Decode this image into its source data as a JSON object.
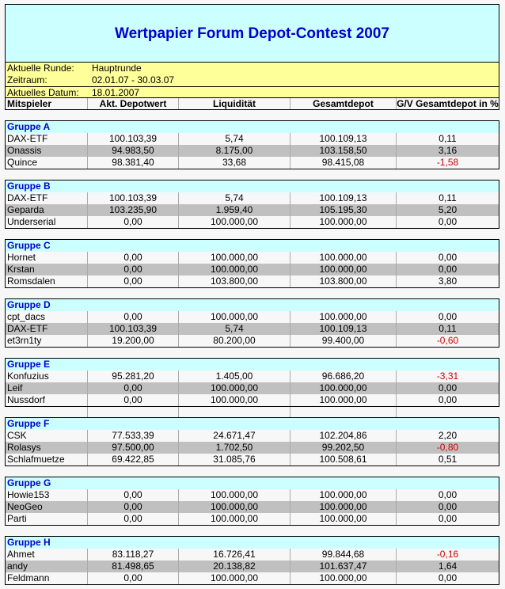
{
  "title": "Wertpapier Forum Depot-Contest 2007",
  "info": [
    {
      "label": "Aktuelle Runde:",
      "value": "Hauptrunde"
    },
    {
      "label": "Zeitraum:",
      "value": "02.01.07 - 30.03.07"
    },
    {
      "label": "Aktuelles Datum:",
      "value": "18.01.2007"
    }
  ],
  "columns": [
    "Mitspieler",
    "Akt. Depotwert",
    "Liquidität",
    "Gesamtdepot",
    "G/V Gesamtdepot in %"
  ],
  "colors": {
    "header_bg": "#ccffff",
    "info_bg": "#ffff99",
    "title": "#0000cc",
    "negative": "#cc0000",
    "alt_row": "#c0c0c0"
  },
  "groups": [
    {
      "name": "Gruppe A",
      "rows": [
        [
          "DAX-ETF",
          "100.103,39",
          "5,74",
          "100.109,13",
          "0,11"
        ],
        [
          "Onassis",
          "94.983,50",
          "8.175,00",
          "103.158,50",
          "3,16"
        ],
        [
          "Quince",
          "98.381,40",
          "33,68",
          "98.415,08",
          "-1,58"
        ]
      ]
    },
    {
      "name": "Gruppe B",
      "rows": [
        [
          "DAX-ETF",
          "100.103,39",
          "5,74",
          "100.109,13",
          "0,11"
        ],
        [
          "Geparda",
          "103.235,90",
          "1.959,40",
          "105.195,30",
          "5,20"
        ],
        [
          "Underserial",
          "0,00",
          "100.000,00",
          "100.000,00",
          "0,00"
        ]
      ]
    },
    {
      "name": "Gruppe C",
      "rows": [
        [
          "Hornet",
          "0,00",
          "100.000,00",
          "100.000,00",
          "0,00"
        ],
        [
          "Krstan",
          "0,00",
          "100.000,00",
          "100.000,00",
          "0,00"
        ],
        [
          "Romsdalen",
          "0,00",
          "103.800,00",
          "103.800,00",
          "3,80"
        ]
      ]
    },
    {
      "name": "Gruppe D",
      "rows": [
        [
          "cpt_dacs",
          "0,00",
          "100.000,00",
          "100.000,00",
          "0,00"
        ],
        [
          "DAX-ETF",
          "100.103,39",
          "5,74",
          "100.109,13",
          "0,11"
        ],
        [
          "et3rn1ty",
          "19.200,00",
          "80.200,00",
          "99.400,00",
          "-0,60"
        ]
      ]
    },
    {
      "name": "Gruppe E",
      "rows": [
        [
          "Konfuzius",
          "95.281,20",
          "1.405,00",
          "96.686,20",
          "-3,31"
        ],
        [
          "Leif",
          "0,00",
          "100.000,00",
          "100.000,00",
          "0,00"
        ],
        [
          "Nussdorf",
          "0,00",
          "100.000,00",
          "100.000,00",
          "0,00"
        ]
      ]
    },
    {
      "name": "Gruppe F",
      "rows": [
        [
          "CSK",
          "77.533,39",
          "24.671,47",
          "102.204,86",
          "2,20"
        ],
        [
          "Rolasys",
          "97.500,00",
          "1.702,50",
          "99.202,50",
          "-0,80"
        ],
        [
          "Schlafmuetze",
          "69.422,85",
          "31.085,76",
          "100.508,61",
          "0,51"
        ]
      ]
    },
    {
      "name": "Gruppe G",
      "rows": [
        [
          "Howie153",
          "0,00",
          "100.000,00",
          "100.000,00",
          "0,00"
        ],
        [
          "NeoGeo",
          "0,00",
          "100.000,00",
          "100.000,00",
          "0,00"
        ],
        [
          "Parti",
          "0,00",
          "100.000,00",
          "100.000,00",
          "0,00"
        ]
      ]
    },
    {
      "name": "Gruppe H",
      "rows": [
        [
          "Ahmet",
          "83.118,27",
          "16.726,41",
          "99.844,68",
          "-0,16"
        ],
        [
          "andy",
          "81.498,65",
          "20.138,82",
          "101.637,47",
          "1,64"
        ],
        [
          "Feldmann",
          "0,00",
          "100.000,00",
          "100.000,00",
          "0,00"
        ]
      ]
    }
  ]
}
